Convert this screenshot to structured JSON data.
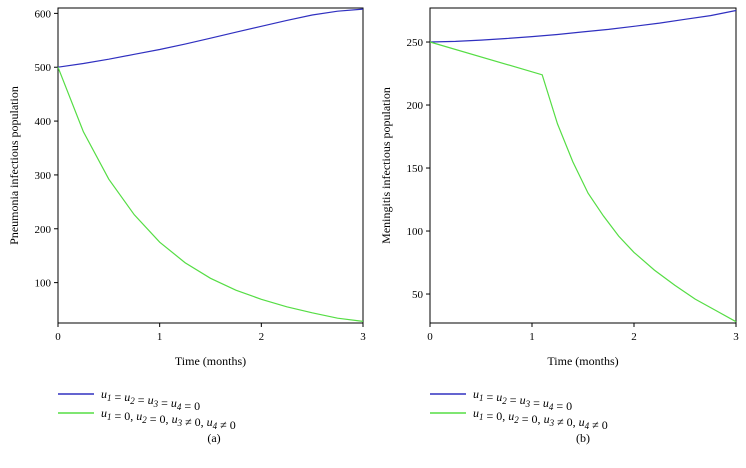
{
  "chart_data": [
    {
      "type": "line",
      "panel_label": "(a)",
      "xlabel": "Time (months)",
      "ylabel": "Pneumonia infectious population",
      "xlim": [
        0,
        3
      ],
      "ylim": [
        25,
        610
      ],
      "xticks": [
        0,
        1,
        2,
        3
      ],
      "yticks": [
        100,
        200,
        300,
        400,
        500,
        600
      ],
      "grid": false,
      "legend_position": "bottom",
      "series": [
        {
          "name": "u1 = u2 = u3 = u4 = 0",
          "color": "#3030c0",
          "x": [
            0,
            0.25,
            0.5,
            0.75,
            1,
            1.25,
            1.5,
            1.75,
            2,
            2.25,
            2.5,
            2.75,
            3
          ],
          "y": [
            500,
            507,
            515,
            524,
            533,
            543,
            554,
            565,
            576,
            587,
            597,
            604,
            608
          ]
        },
        {
          "name": "u1 = 0, u2 = 0, u3 ≠ 0, u4 ≠ 0",
          "color": "#55dd44",
          "x": [
            0,
            0.25,
            0.5,
            0.75,
            1,
            1.25,
            1.5,
            1.75,
            2,
            2.25,
            2.5,
            2.75,
            3
          ],
          "y": [
            500,
            380,
            292,
            226,
            175,
            137,
            108,
            86,
            69,
            55,
            44,
            34,
            28
          ]
        }
      ]
    },
    {
      "type": "line",
      "panel_label": "(b)",
      "xlabel": "Time (months)",
      "ylabel": "Meningitis infectious population",
      "xlim": [
        0,
        3
      ],
      "ylim": [
        27,
        277
      ],
      "xticks": [
        0,
        1,
        2,
        3
      ],
      "yticks": [
        50,
        100,
        150,
        200,
        250
      ],
      "grid": false,
      "legend_position": "bottom",
      "series": [
        {
          "name": "u1 = u2 = u3 = u4 = 0",
          "color": "#3030c0",
          "x": [
            0,
            0.25,
            0.5,
            0.75,
            1,
            1.25,
            1.5,
            1.75,
            2,
            2.25,
            2.5,
            2.75,
            3
          ],
          "y": [
            250,
            250.5,
            251.5,
            252.8,
            254.3,
            256,
            258,
            260,
            262.5,
            265,
            268,
            271,
            275
          ]
        },
        {
          "name": "u1 = 0, u2 = 0, u3 ≠ 0, u4 ≠ 0",
          "color": "#55dd44",
          "x": [
            0,
            1.1,
            1.25,
            1.4,
            1.55,
            1.7,
            1.85,
            2,
            2.2,
            2.4,
            2.6,
            2.8,
            3
          ],
          "y": [
            250,
            224,
            185,
            155,
            130,
            112,
            96,
            83,
            69,
            57,
            46,
            37,
            28
          ]
        }
      ]
    }
  ]
}
